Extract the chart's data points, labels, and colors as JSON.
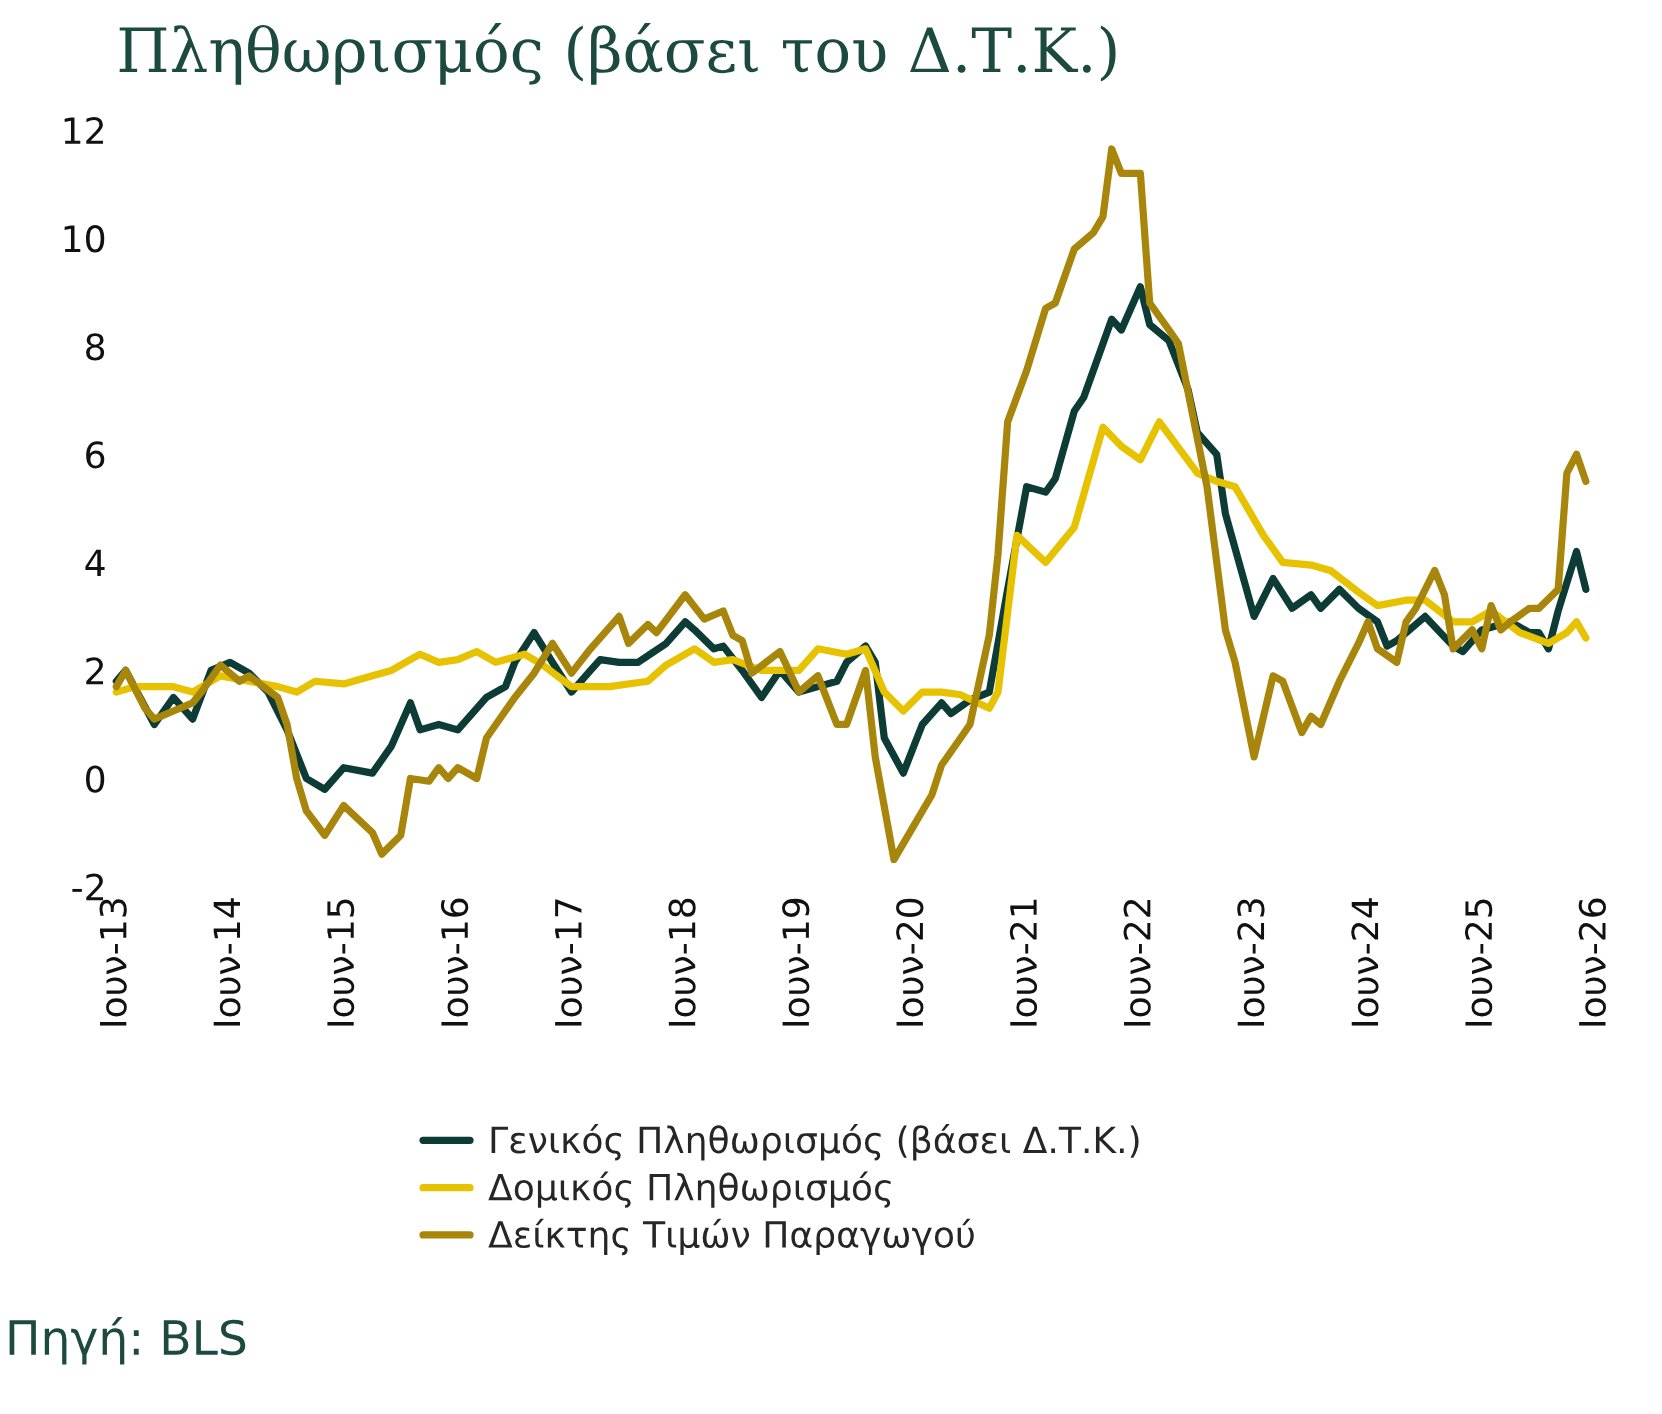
{
  "chart_data": {
    "type": "line",
    "title": "Πληθωρισμός (βάσει του Δ.Τ.Κ.)",
    "annotations": [
      "Πηγή: BLS"
    ],
    "xlim": [
      "2013-06",
      "2026-06"
    ],
    "ylim": [
      -2,
      12
    ],
    "xticks": [
      {
        "value": "2013-06",
        "label": "Ιουν-13"
      },
      {
        "value": "2014-06",
        "label": "Ιουν-14"
      },
      {
        "value": "2015-06",
        "label": "Ιουν-15"
      },
      {
        "value": "2016-06",
        "label": "Ιουν-16"
      },
      {
        "value": "2017-06",
        "label": "Ιουν-17"
      },
      {
        "value": "2018-06",
        "label": "Ιουν-18"
      },
      {
        "value": "2019-06",
        "label": "Ιουν-19"
      },
      {
        "value": "2020-06",
        "label": "Ιουν-20"
      },
      {
        "value": "2021-06",
        "label": "Ιουν-21"
      },
      {
        "value": "2022-06",
        "label": "Ιουν-22"
      },
      {
        "value": "2023-06",
        "label": "Ιουν-23"
      },
      {
        "value": "2024-06",
        "label": "Ιουν-24"
      },
      {
        "value": "2025-06",
        "label": "Ιουν-25"
      },
      {
        "value": "2026-06",
        "label": "Ιουν-26"
      }
    ],
    "yticks": [
      -2,
      0,
      2,
      4,
      6,
      8,
      10,
      12
    ],
    "legend": "bottom",
    "line_style": "solid",
    "series": [
      {
        "name": "Γενικός Πληθωρισμός (βάσει Δ.Τ.Κ.)",
        "color": "#0d3b36",
        "x": [
          "2013-06",
          "2013-07",
          "2013-10",
          "2013-12",
          "2014-02",
          "2014-04",
          "2014-06",
          "2014-08",
          "2014-10",
          "2014-12",
          "2015-02",
          "2015-04",
          "2015-06",
          "2015-09",
          "2015-11",
          "2016-01",
          "2016-02",
          "2016-04",
          "2016-06",
          "2016-09",
          "2016-11",
          "2016-12",
          "2017-02",
          "2017-04",
          "2017-06",
          "2017-08",
          "2017-09",
          "2017-11",
          "2018-01",
          "2018-04",
          "2018-06",
          "2018-07",
          "2018-09",
          "2018-10",
          "2018-12",
          "2019-02",
          "2019-04",
          "2019-06",
          "2019-08",
          "2019-10",
          "2019-11",
          "2020-01",
          "2020-02",
          "2020-03",
          "2020-05",
          "2020-07",
          "2020-09",
          "2020-10",
          "2020-12",
          "2021-02",
          "2021-04",
          "2021-06",
          "2021-08",
          "2021-09",
          "2021-11",
          "2021-12",
          "2022-03",
          "2022-04",
          "2022-06",
          "2022-07",
          "2022-09",
          "2022-11",
          "2022-12",
          "2023-02",
          "2023-03",
          "2023-06",
          "2023-08",
          "2023-10",
          "2023-12",
          "2024-01",
          "2024-03",
          "2024-05",
          "2024-07",
          "2024-08",
          "2024-09",
          "2024-12",
          "2025-03",
          "2025-04",
          "2025-06",
          "2025-09",
          "2025-11",
          "2025-12",
          "2026-01",
          "2026-02",
          "2026-04",
          "2026-05"
        ],
        "values": [
          1.8,
          2.0,
          1.0,
          1.5,
          1.1,
          2.0,
          2.15,
          1.95,
          1.6,
          0.9,
          0.0,
          -0.2,
          0.2,
          0.1,
          0.6,
          1.4,
          0.9,
          1.0,
          0.9,
          1.5,
          1.7,
          2.15,
          2.7,
          2.15,
          1.6,
          2.0,
          2.2,
          2.15,
          2.15,
          2.5,
          2.9,
          2.75,
          2.4,
          2.45,
          2.0,
          1.5,
          2.0,
          1.6,
          1.7,
          1.8,
          2.15,
          2.45,
          2.15,
          0.75,
          0.1,
          1.0,
          1.4,
          1.2,
          1.45,
          1.6,
          3.5,
          5.4,
          5.3,
          5.55,
          6.8,
          7.05,
          8.5,
          8.3,
          9.1,
          8.4,
          8.1,
          7.2,
          6.4,
          6.0,
          4.9,
          3.0,
          3.7,
          3.15,
          3.4,
          3.15,
          3.5,
          3.15,
          2.9,
          2.45,
          2.55,
          3.0,
          2.45,
          2.35,
          2.75,
          2.9,
          2.7,
          2.7,
          2.4,
          3.1,
          4.2,
          3.5
        ]
      },
      {
        "name": "Δομικός Πληθωρισμός",
        "color": "#e6c200",
        "x": [
          "2013-06",
          "2013-08",
          "2013-12",
          "2014-02",
          "2014-05",
          "2014-08",
          "2014-11",
          "2015-01",
          "2015-03",
          "2015-06",
          "2015-09",
          "2015-11",
          "2016-02",
          "2016-04",
          "2016-06",
          "2016-08",
          "2016-10",
          "2017-01",
          "2017-03",
          "2017-06",
          "2017-08",
          "2017-10",
          "2018-02",
          "2018-04",
          "2018-07",
          "2018-09",
          "2018-11",
          "2019-02",
          "2019-06",
          "2019-08",
          "2019-11",
          "2020-01",
          "2020-03",
          "2020-05",
          "2020-07",
          "2020-09",
          "2020-11",
          "2021-02",
          "2021-03",
          "2021-05",
          "2021-08",
          "2021-11",
          "2022-02",
          "2022-04",
          "2022-06",
          "2022-08",
          "2022-12",
          "2023-02",
          "2023-04",
          "2023-07",
          "2023-09",
          "2023-12",
          "2024-02",
          "2024-05",
          "2024-07",
          "2024-10",
          "2024-12",
          "2025-03",
          "2025-05",
          "2025-07",
          "2025-10",
          "2026-01",
          "2026-03",
          "2026-04",
          "2026-05"
        ],
        "values": [
          1.6,
          1.7,
          1.7,
          1.6,
          1.9,
          1.8,
          1.7,
          1.6,
          1.8,
          1.75,
          1.9,
          2.0,
          2.3,
          2.15,
          2.2,
          2.35,
          2.15,
          2.3,
          2.1,
          1.7,
          1.7,
          1.7,
          1.8,
          2.1,
          2.4,
          2.15,
          2.2,
          2.0,
          2.0,
          2.4,
          2.3,
          2.4,
          1.6,
          1.25,
          1.6,
          1.6,
          1.55,
          1.3,
          1.6,
          4.5,
          4.0,
          4.65,
          6.5,
          6.15,
          5.9,
          6.6,
          5.65,
          5.5,
          5.4,
          4.5,
          4.0,
          3.95,
          3.85,
          3.45,
          3.2,
          3.3,
          3.3,
          2.9,
          2.9,
          3.1,
          2.7,
          2.5,
          2.7,
          2.9,
          2.6
        ]
      },
      {
        "name": "Δείκτης Τιμών Παραγωγού",
        "color": "#a8860c",
        "x": [
          "2013-06",
          "2013-07",
          "2013-09",
          "2013-10",
          "2013-12",
          "2014-02",
          "2014-03",
          "2014-05",
          "2014-07",
          "2014-08",
          "2014-11",
          "2014-12",
          "2015-01",
          "2015-02",
          "2015-04",
          "2015-06",
          "2015-09",
          "2015-10",
          "2015-12",
          "2016-01",
          "2016-03",
          "2016-04",
          "2016-05",
          "2016-06",
          "2016-08",
          "2016-09",
          "2016-12",
          "2017-02",
          "2017-04",
          "2017-06",
          "2017-08",
          "2017-11",
          "2017-12",
          "2018-02",
          "2018-03",
          "2018-06",
          "2018-08",
          "2018-10",
          "2018-11",
          "2018-12",
          "2019-01",
          "2019-04",
          "2019-06",
          "2019-08",
          "2019-10",
          "2019-11",
          "2020-01",
          "2020-02",
          "2020-04",
          "2020-06",
          "2020-08",
          "2020-09",
          "2020-11",
          "2020-12",
          "2021-02",
          "2021-03",
          "2021-04",
          "2021-06",
          "2021-08",
          "2021-09",
          "2021-11",
          "2022-01",
          "2022-02",
          "2022-03",
          "2022-04",
          "2022-06",
          "2022-07",
          "2022-09",
          "2022-10",
          "2023-01",
          "2023-03",
          "2023-04",
          "2023-06",
          "2023-08",
          "2023-09",
          "2023-11",
          "2023-12",
          "2024-01",
          "2024-03",
          "2024-05",
          "2024-06",
          "2024-07",
          "2024-09",
          "2024-10",
          "2024-11",
          "2025-01",
          "2025-02",
          "2025-03",
          "2025-05",
          "2025-06",
          "2025-07",
          "2025-08",
          "2025-09",
          "2025-11",
          "2025-12",
          "2026-02",
          "2026-03",
          "2026-04",
          "2026-05"
        ],
        "values": [
          1.7,
          2.0,
          1.3,
          1.1,
          1.25,
          1.4,
          1.6,
          2.1,
          1.8,
          1.9,
          1.5,
          1.0,
          0.0,
          -0.6,
          -1.05,
          -0.5,
          -1.0,
          -1.4,
          -1.05,
          0.0,
          -0.05,
          0.2,
          0.0,
          0.2,
          0.0,
          0.75,
          1.5,
          1.95,
          2.5,
          1.95,
          2.4,
          3.0,
          2.5,
          2.85,
          2.7,
          3.4,
          2.95,
          3.1,
          2.65,
          2.55,
          1.95,
          2.35,
          1.6,
          1.9,
          1.0,
          1.0,
          2.0,
          0.4,
          -1.5,
          -0.9,
          -0.3,
          0.25,
          0.75,
          1.0,
          2.65,
          4.15,
          6.6,
          7.55,
          8.7,
          8.8,
          9.8,
          10.1,
          10.4,
          11.65,
          11.2,
          11.2,
          8.8,
          8.3,
          8.05,
          5.4,
          2.75,
          2.15,
          0.4,
          1.9,
          1.8,
          0.85,
          1.15,
          1.0,
          1.8,
          2.5,
          2.9,
          2.4,
          2.15,
          2.9,
          3.15,
          3.85,
          3.4,
          2.4,
          2.75,
          2.4,
          3.2,
          2.75,
          2.9,
          3.15,
          3.15,
          3.5,
          5.65,
          6.0,
          5.5
        ]
      }
    ]
  }
}
